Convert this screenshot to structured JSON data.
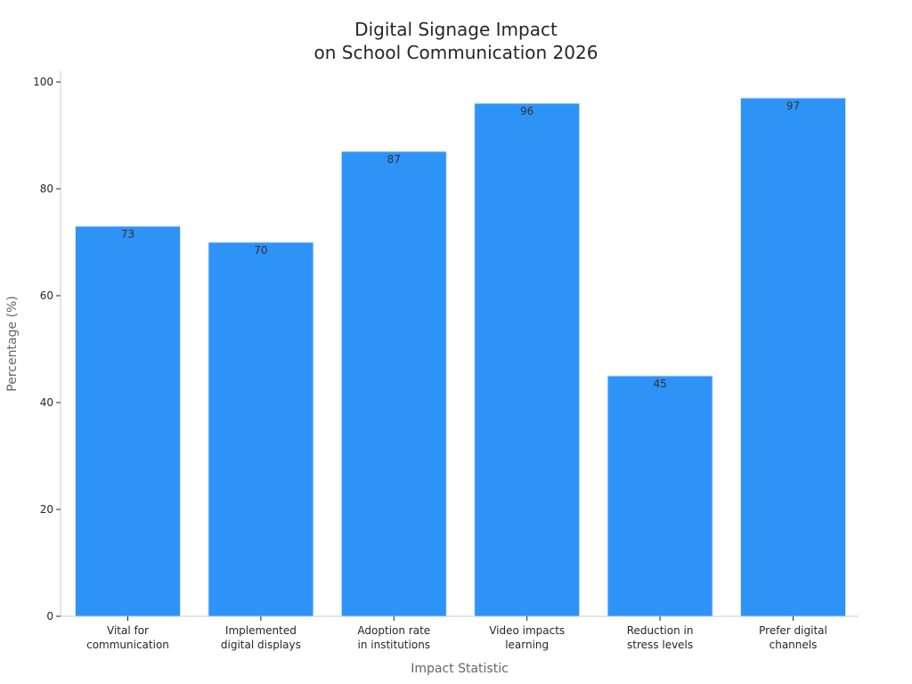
{
  "chart_data": {
    "type": "bar",
    "title_lines": [
      "Digital Signage Impact",
      "on School Communication 2026"
    ],
    "xlabel": "Impact Statistic",
    "ylabel": "Percentage (%)",
    "ylim": [
      0,
      100
    ],
    "yticks": [
      0,
      20,
      40,
      60,
      80,
      100
    ],
    "grid": false,
    "legend": "none",
    "bar_color": "#2e93f7",
    "categories": [
      [
        "Vital for",
        "communication"
      ],
      [
        "Implemented",
        "digital displays"
      ],
      [
        "Adoption rate",
        "in institutions"
      ],
      [
        "Video impacts",
        "learning"
      ],
      [
        "Reduction in",
        "stress levels"
      ],
      [
        "Prefer digital",
        "channels"
      ]
    ],
    "values": [
      73,
      70,
      87,
      96,
      45,
      97
    ]
  }
}
